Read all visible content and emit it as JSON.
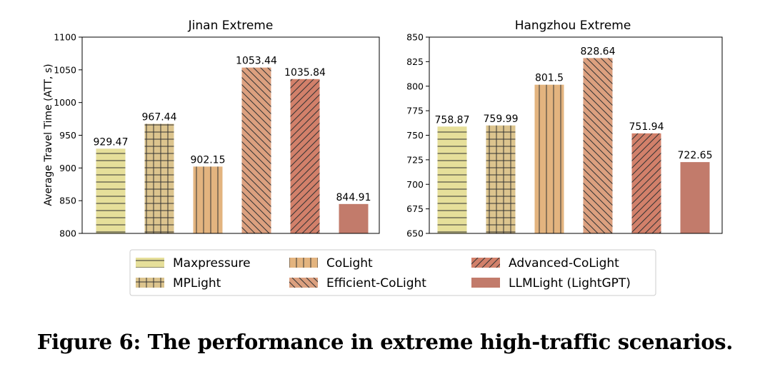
{
  "chart_data": [
    {
      "type": "bar",
      "title": "Jinan Extreme",
      "ylabel": "Average Travel Time (ATT, s)",
      "xlabel": "",
      "ylim": [
        800,
        1100
      ],
      "yticks": [
        800,
        850,
        900,
        950,
        1000,
        1050,
        1100
      ],
      "categories": [
        "Maxpressure",
        "MPLight",
        "CoLight",
        "Efficient-CoLight",
        "Advanced-CoLight",
        "LLMLight (LightGPT)"
      ],
      "values": [
        929.47,
        967.44,
        902.15,
        1053.44,
        1035.84,
        844.91
      ],
      "labels": [
        "929.47",
        "967.44",
        "902.15",
        "1053.44",
        "1035.84",
        "844.91"
      ]
    },
    {
      "type": "bar",
      "title": "Hangzhou Extreme",
      "ylabel": "",
      "xlabel": "",
      "ylim": [
        650,
        850
      ],
      "yticks": [
        650,
        675,
        700,
        725,
        750,
        775,
        800,
        825,
        850
      ],
      "categories": [
        "Maxpressure",
        "MPLight",
        "CoLight",
        "Efficient-CoLight",
        "Advanced-CoLight",
        "LLMLight (LightGPT)"
      ],
      "values": [
        758.87,
        759.99,
        801.5,
        828.64,
        751.94,
        722.65
      ],
      "labels": [
        "758.87",
        "759.99",
        "801.5",
        "828.64",
        "751.94",
        "722.65"
      ]
    }
  ],
  "legend": [
    {
      "name": "Maxpressure",
      "color": "#e6df9a",
      "pattern": "hlines"
    },
    {
      "name": "MPLight",
      "color": "#dcc48e",
      "pattern": "grid"
    },
    {
      "name": "CoLight",
      "color": "#e3b47f",
      "pattern": "vlines"
    },
    {
      "name": "Efficient-CoLight",
      "color": "#dca07f",
      "pattern": "backslash"
    },
    {
      "name": "Advanced-CoLight",
      "color": "#d2806a",
      "pattern": "slash"
    },
    {
      "name": "LLMLight (LightGPT)",
      "color": "#c27b6b",
      "pattern": "none"
    }
  ],
  "caption": "Figure 6: The performance in extreme high-traffic scenarios."
}
